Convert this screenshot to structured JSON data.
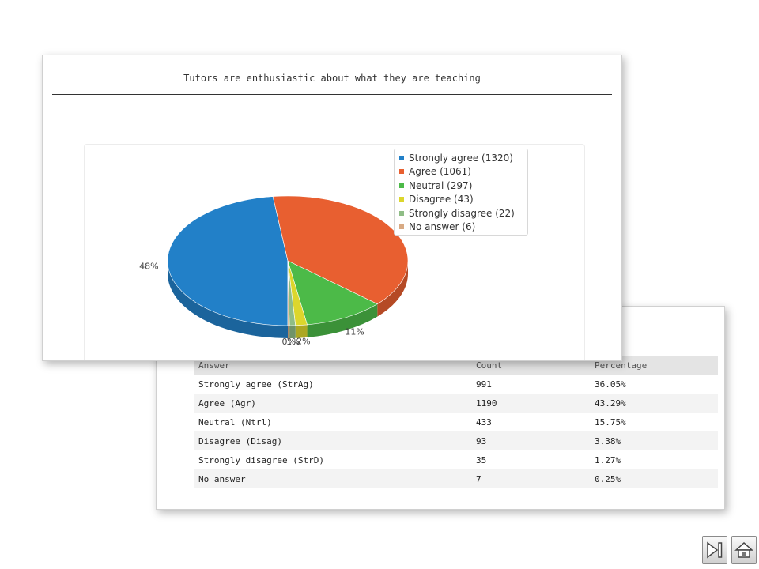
{
  "chart_data": {
    "type": "pie",
    "title": "Tutors are enthusiastic about what they are teaching",
    "categories": [
      "Strongly agree",
      "Agree",
      "Neutral",
      "Disagree",
      "Strongly disagree",
      "No answer"
    ],
    "values": [
      1320,
      1061,
      297,
      43,
      22,
      6
    ],
    "legend_labels": [
      "Strongly agree (1320)",
      "Agree (1061)",
      "Neutral (297)",
      "Disagree (43)",
      "Strongly disagree (22)",
      "No answer (6)"
    ],
    "percent_labels": [
      "48%",
      "39%",
      "11%",
      "2%",
      "1%",
      "0%"
    ],
    "colors": [
      "#2280c8",
      "#e85f30",
      "#4cba48",
      "#dcd62c",
      "#8fbd86",
      "#d8aa84"
    ],
    "legend_position": "top-right",
    "style": "3d"
  },
  "table": {
    "headers": [
      "Answer",
      "Count",
      "Percentage"
    ],
    "rows": [
      [
        "Strongly agree (StrAg)",
        "991",
        "36.05%"
      ],
      [
        "Agree (Agr)",
        "1190",
        "43.29%"
      ],
      [
        "Neutral (Ntrl)",
        "433",
        "15.75%"
      ],
      [
        "Disagree (Disag)",
        "93",
        "3.38%"
      ],
      [
        "Strongly disagree (StrD)",
        "35",
        "1.27%"
      ],
      [
        "No answer",
        "7",
        "0.25%"
      ]
    ]
  },
  "nav": {
    "next_icon": "skip-next-icon",
    "home_icon": "home-icon"
  }
}
